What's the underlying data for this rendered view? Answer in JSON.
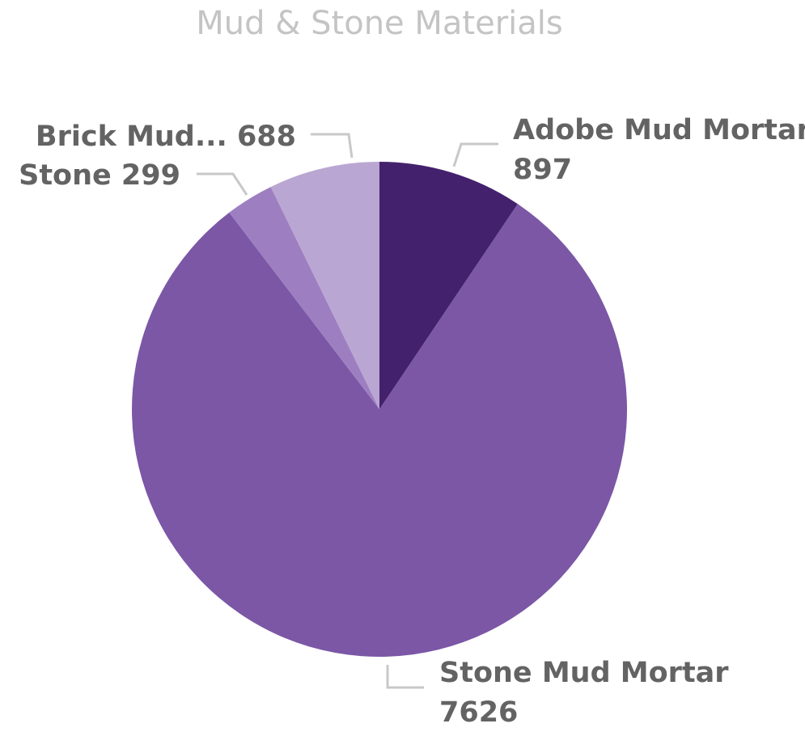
{
  "chart_data": {
    "type": "pie",
    "title": "Mud & Stone Materials",
    "slices": [
      {
        "category": "Adobe Mud Mortar",
        "value": 897,
        "label_lines": [
          "Adobe Mud Mortar",
          "897"
        ],
        "color": "#44216d"
      },
      {
        "category": "Stone Mud Mortar",
        "value": 7626,
        "label_lines": [
          "Stone Mud Mortar",
          "7626"
        ],
        "color": "#7b57a6"
      },
      {
        "category": "Stone",
        "value": 299,
        "label_lines": [
          "Stone 299"
        ],
        "color": "#9d7fc1"
      },
      {
        "category": "Brick Mud...",
        "value": 688,
        "label_lines": [
          "Brick Mud... 688"
        ],
        "color": "#baa6d2"
      }
    ],
    "start_angle_deg": 0,
    "direction": "clockwise",
    "legend": "none",
    "data_labels": "outside with leader lines"
  }
}
